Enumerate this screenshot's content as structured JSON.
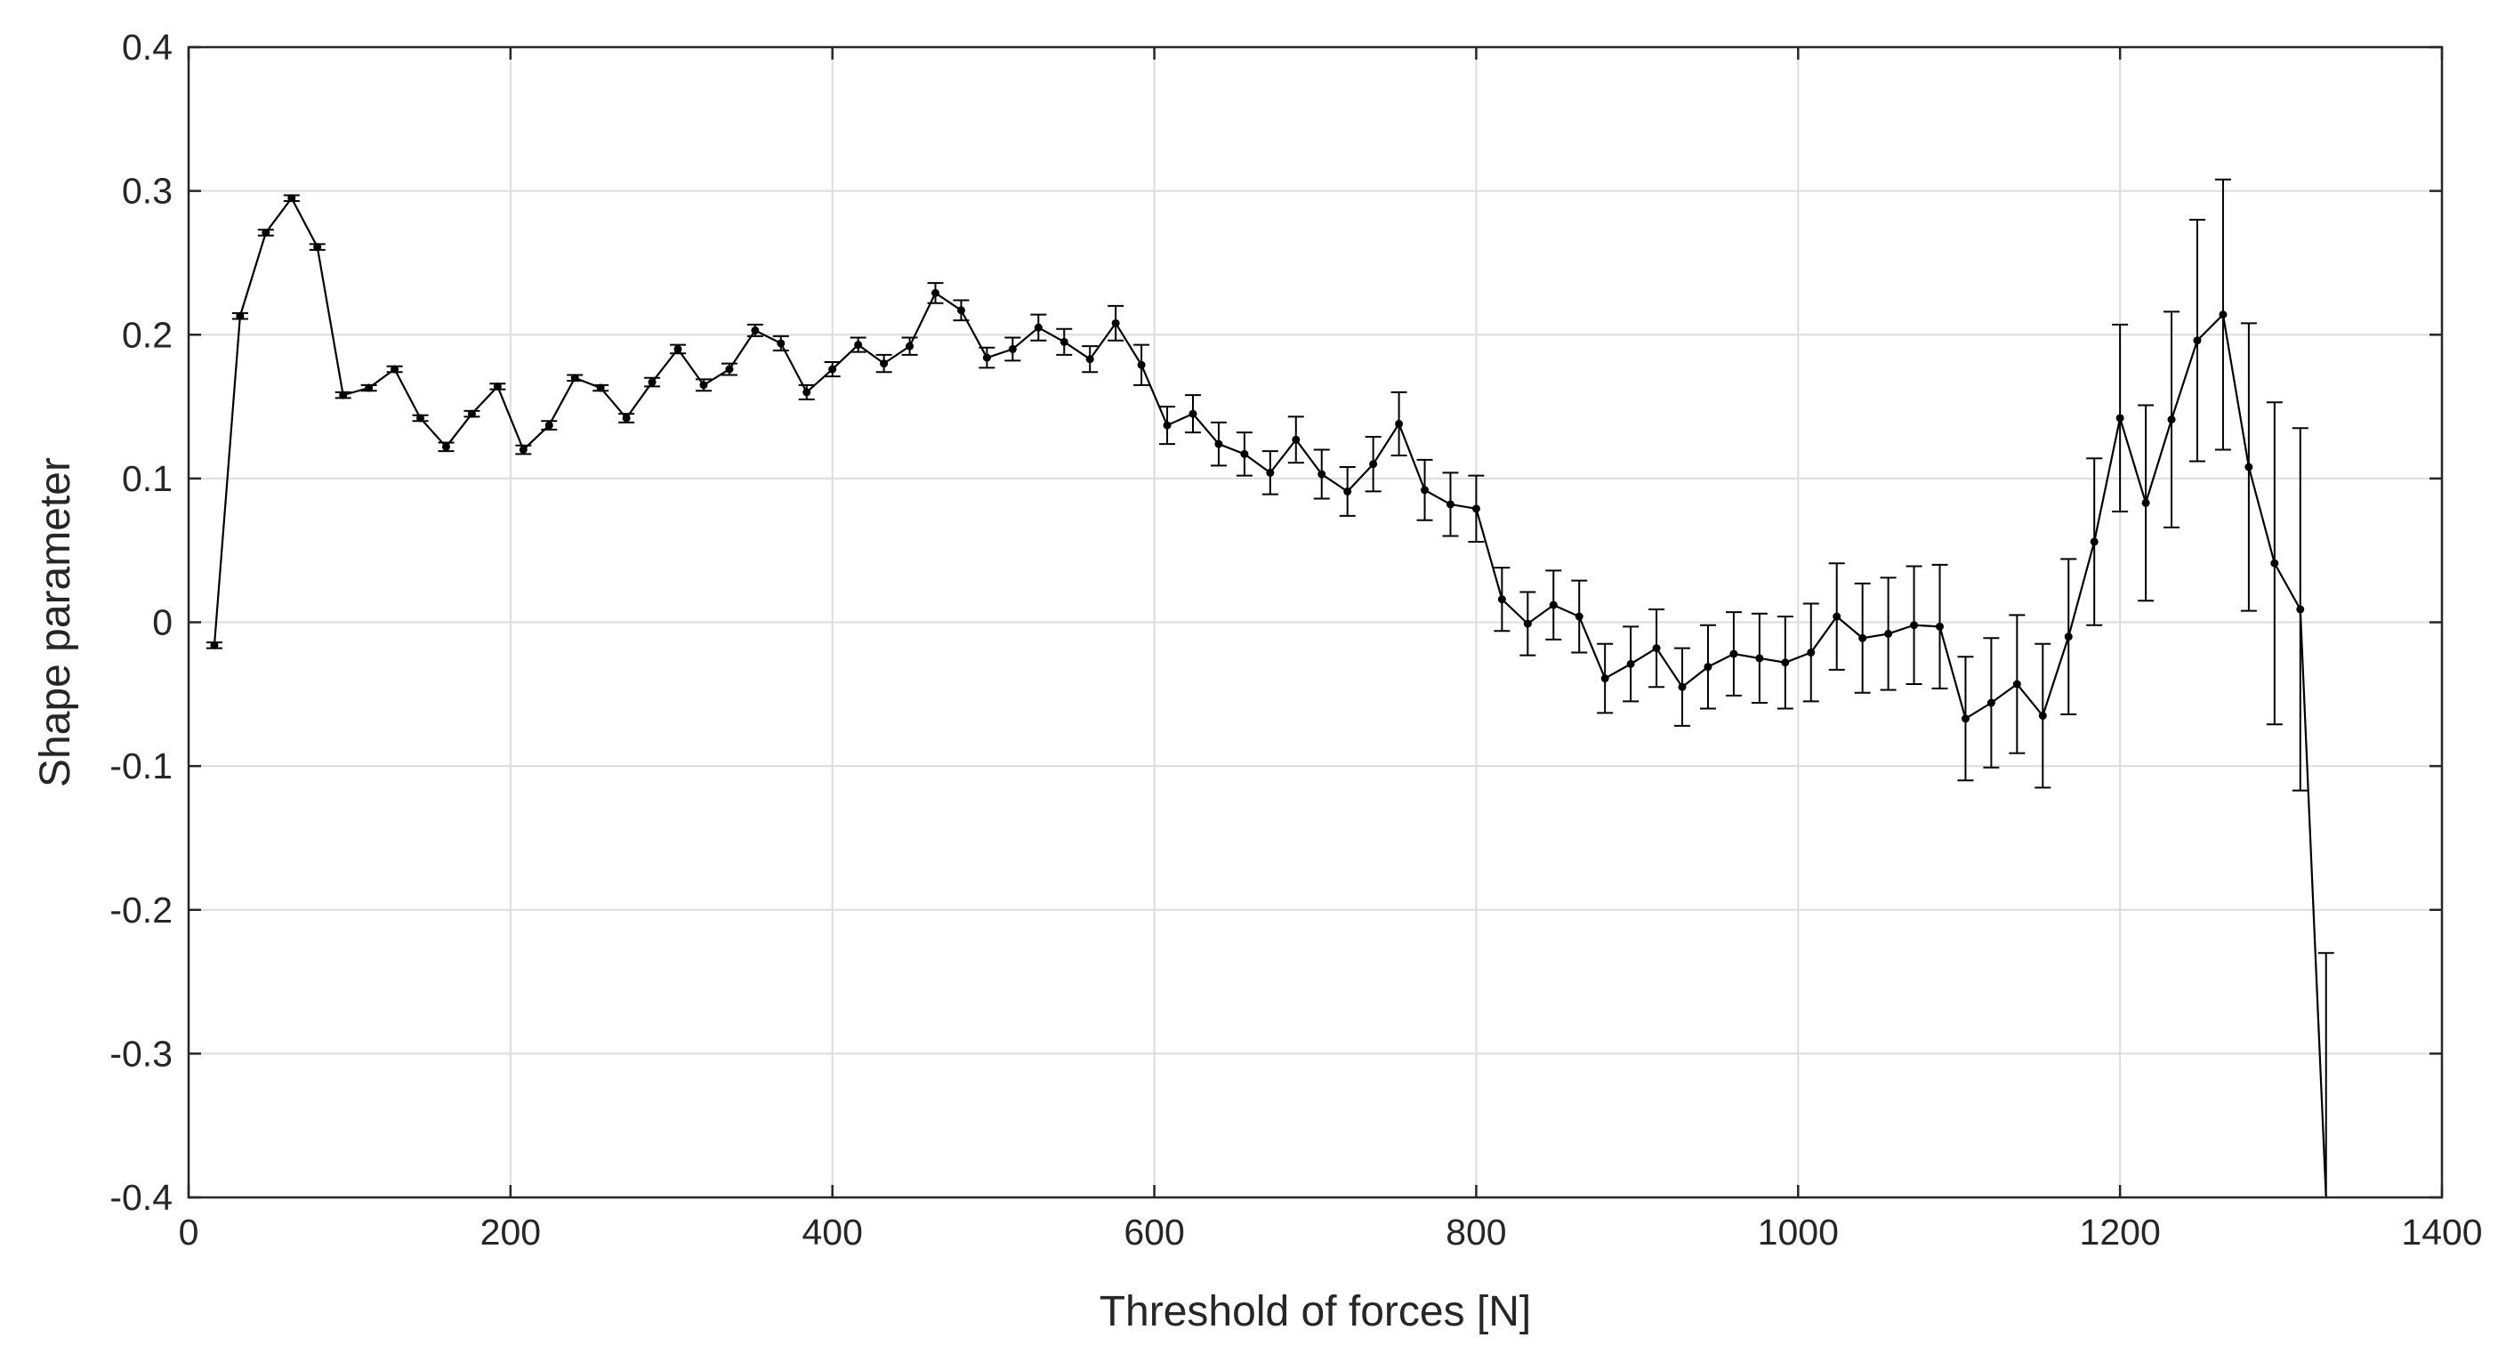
{
  "chart_data": {
    "type": "line",
    "title": "",
    "xlabel": "Threshold of forces [N]",
    "ylabel": "Shape parameter",
    "xlim": [
      0,
      1400
    ],
    "ylim": [
      -0.4,
      0.4
    ],
    "grid": true,
    "xticks": [
      0,
      200,
      400,
      600,
      800,
      1000,
      1200,
      1400
    ],
    "xtick_labels": [
      "0",
      "200",
      "400",
      "600",
      "800",
      "1000",
      "1200",
      "1400"
    ],
    "yticks": [
      0.4,
      0.3,
      0.2,
      0.1,
      0,
      -0.1,
      -0.2,
      -0.3,
      -0.4
    ],
    "ytick_labels": [
      "0.4",
      "0.3",
      "0.2",
      "0.1",
      "0",
      "-0.1",
      "-0.2",
      "-0.3",
      "-0.4"
    ],
    "series": [
      {
        "name": "Shape parameter",
        "color": "#000000",
        "x": [
          16,
          32,
          48,
          64,
          80,
          96,
          112,
          128,
          144,
          160,
          176,
          192,
          208,
          224,
          240,
          256,
          272,
          288,
          304,
          320,
          336,
          352,
          368,
          384,
          400,
          416,
          432,
          448,
          464,
          480,
          496,
          512,
          528,
          544,
          560,
          576,
          592,
          608,
          624,
          640,
          656,
          672,
          688,
          704,
          720,
          736,
          752,
          768,
          784,
          800,
          816,
          832,
          848,
          864,
          880,
          896,
          912,
          928,
          944,
          960,
          976,
          992,
          1008,
          1024,
          1040,
          1056,
          1072,
          1088,
          1104,
          1120,
          1136,
          1152,
          1168,
          1184,
          1200,
          1216,
          1232,
          1248,
          1264,
          1280,
          1296,
          1312,
          1328
        ],
        "y": [
          -0.016,
          0.213,
          0.271,
          0.295,
          0.261,
          0.158,
          0.163,
          0.176,
          0.142,
          0.122,
          0.145,
          0.164,
          0.12,
          0.137,
          0.17,
          0.163,
          0.142,
          0.167,
          0.19,
          0.165,
          0.176,
          0.203,
          0.194,
          0.16,
          0.176,
          0.193,
          0.18,
          0.192,
          0.229,
          0.217,
          0.184,
          0.19,
          0.205,
          0.195,
          0.183,
          0.208,
          0.179,
          0.137,
          0.145,
          0.124,
          0.117,
          0.104,
          0.127,
          0.103,
          0.091,
          0.11,
          0.138,
          0.092,
          0.082,
          0.079,
          0.016,
          -0.001,
          0.012,
          0.004,
          -0.039,
          -0.029,
          -0.018,
          -0.045,
          -0.031,
          -0.022,
          -0.025,
          -0.028,
          -0.021,
          0.004,
          -0.011,
          -0.008,
          -0.002,
          -0.003,
          -0.067,
          -0.056,
          -0.043,
          -0.065,
          -0.01,
          0.056,
          0.142,
          0.083,
          0.141,
          0.196,
          0.214,
          0.108,
          0.041,
          0.009,
          -0.4
        ],
        "err": [
          0.002,
          0.002,
          0.002,
          0.002,
          0.002,
          0.002,
          0.002,
          0.002,
          0.002,
          0.003,
          0.002,
          0.002,
          0.003,
          0.003,
          0.002,
          0.002,
          0.003,
          0.003,
          0.003,
          0.004,
          0.004,
          0.004,
          0.005,
          0.005,
          0.005,
          0.005,
          0.006,
          0.006,
          0.007,
          0.007,
          0.007,
          0.008,
          0.009,
          0.009,
          0.009,
          0.012,
          0.014,
          0.013,
          0.013,
          0.015,
          0.015,
          0.015,
          0.016,
          0.017,
          0.017,
          0.019,
          0.022,
          0.021,
          0.022,
          0.023,
          0.022,
          0.022,
          0.024,
          0.025,
          0.024,
          0.026,
          0.027,
          0.027,
          0.029,
          0.029,
          0.031,
          0.032,
          0.034,
          0.037,
          0.038,
          0.039,
          0.041,
          0.043,
          0.043,
          0.045,
          0.048,
          0.05,
          0.054,
          0.058,
          0.065,
          0.068,
          0.075,
          0.084,
          0.094,
          0.1,
          0.112,
          0.126,
          0.17
        ]
      }
    ]
  }
}
